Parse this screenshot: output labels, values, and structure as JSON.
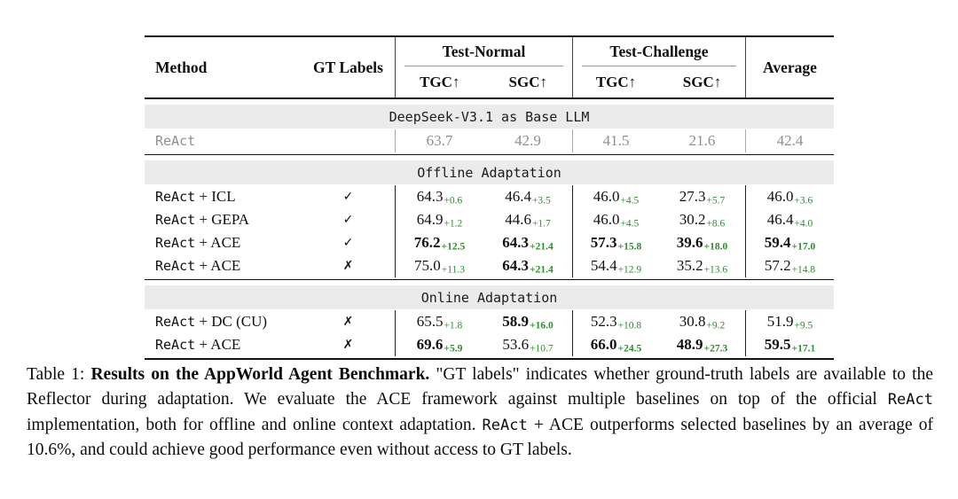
{
  "colors": {
    "accent_green": "#2e8b2e",
    "band_bg": "#ebebeb",
    "muted_text": "#8f8f8f"
  },
  "table": {
    "header": {
      "method": "Method",
      "gt_labels": "GT Labels",
      "group1": "Test-Normal",
      "group2": "Test-Challenge",
      "average": "Average",
      "subcols": [
        "TGC↑",
        "SGC↑",
        "TGC↑",
        "SGC↑"
      ]
    },
    "sections": [
      {
        "band": "DeepSeek-V3.1 as Base LLM",
        "rows": [
          {
            "method_mono": "ReAct",
            "method_rest": "",
            "gt": "",
            "muted": true,
            "cells": [
              {
                "v": "63.7"
              },
              {
                "v": "42.9"
              },
              {
                "v": "41.5"
              },
              {
                "v": "21.6"
              },
              {
                "v": "42.4"
              }
            ]
          }
        ]
      },
      {
        "band": "Offline Adaptation",
        "rows": [
          {
            "method_mono": "ReAct",
            "method_rest": " + ICL",
            "gt": "check",
            "cells": [
              {
                "v": "64.3",
                "s": "+0.6"
              },
              {
                "v": "46.4",
                "s": "+3.5"
              },
              {
                "v": "46.0",
                "s": "+4.5"
              },
              {
                "v": "27.3",
                "s": "+5.7"
              },
              {
                "v": "46.0",
                "s": "+3.6"
              }
            ]
          },
          {
            "method_mono": "ReAct",
            "method_rest": " + GEPA",
            "gt": "check",
            "cells": [
              {
                "v": "64.9",
                "s": "+1.2"
              },
              {
                "v": "44.6",
                "s": "+1.7"
              },
              {
                "v": "46.0",
                "s": "+4.5"
              },
              {
                "v": "30.2",
                "s": "+8.6"
              },
              {
                "v": "46.4",
                "s": "+4.0"
              }
            ]
          },
          {
            "method_mono": "ReAct",
            "method_rest": " + ACE",
            "gt": "check",
            "cells": [
              {
                "v": "76.2",
                "s": "+12.5",
                "b": true
              },
              {
                "v": "64.3",
                "s": "+21.4",
                "b": true
              },
              {
                "v": "57.3",
                "s": "+15.8",
                "b": true
              },
              {
                "v": "39.6",
                "s": "+18.0",
                "b": true
              },
              {
                "v": "59.4",
                "s": "+17.0",
                "b": true
              }
            ]
          },
          {
            "method_mono": "ReAct",
            "method_rest": " + ACE",
            "gt": "cross",
            "cells": [
              {
                "v": "75.0",
                "s": "+11.3"
              },
              {
                "v": "64.3",
                "s": "+21.4",
                "b": true
              },
              {
                "v": "54.4",
                "s": "+12.9"
              },
              {
                "v": "35.2",
                "s": "+13.6"
              },
              {
                "v": "57.2",
                "s": "+14.8"
              }
            ]
          }
        ]
      },
      {
        "band": "Online Adaptation",
        "rows": [
          {
            "method_mono": "ReAct",
            "method_rest": " + DC (CU)",
            "gt": "cross",
            "cells": [
              {
                "v": "65.5",
                "s": "+1.8"
              },
              {
                "v": "58.9",
                "s": "+16.0",
                "b": true
              },
              {
                "v": "52.3",
                "s": "+10.8"
              },
              {
                "v": "30.8",
                "s": "+9.2"
              },
              {
                "v": "51.9",
                "s": "+9.5"
              }
            ]
          },
          {
            "method_mono": "ReAct",
            "method_rest": " + ACE",
            "gt": "cross",
            "cells": [
              {
                "v": "69.6",
                "s": "+5.9",
                "b": true
              },
              {
                "v": "53.6",
                "s": "+10.7"
              },
              {
                "v": "66.0",
                "s": "+24.5",
                "b": true
              },
              {
                "v": "48.9",
                "s": "+27.3",
                "b": true
              },
              {
                "v": "59.5",
                "s": "+17.1",
                "b": true
              }
            ]
          }
        ]
      }
    ],
    "glyphs": {
      "check": "✓",
      "cross": "✗"
    }
  },
  "caption": {
    "segments": [
      {
        "t": "Table 1: "
      },
      {
        "t": "Results on the AppWorld Agent Benchmark.",
        "b": true
      },
      {
        "t": " \"GT labels\" indicates whether ground-truth labels are available to the Reflector during adaptation. We evaluate the ACE framework against multiple baselines on top of the official "
      },
      {
        "t": "ReAct",
        "mono": true
      },
      {
        "t": " implementation, both for offline and online context adaptation. "
      },
      {
        "t": "ReAct",
        "mono": true
      },
      {
        "t": " + ACE outperforms selected baselines by an average of 10.6%, and could achieve good performance even without access to GT labels."
      }
    ]
  }
}
